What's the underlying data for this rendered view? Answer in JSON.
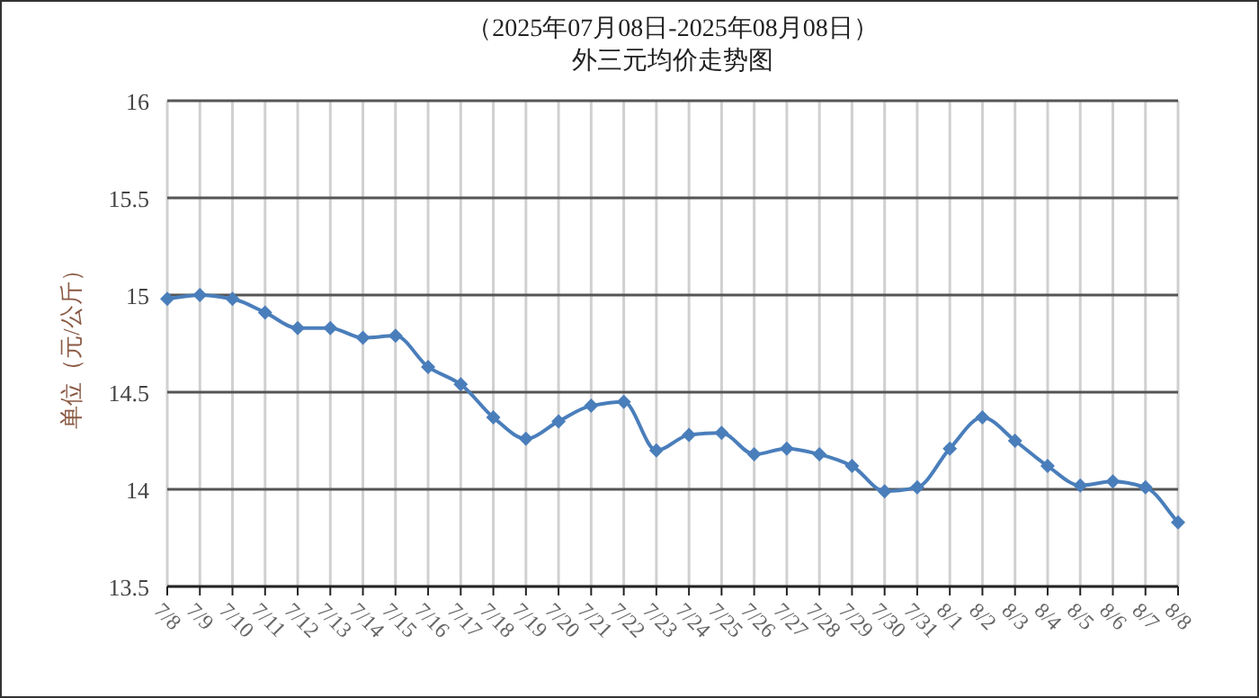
{
  "chart_data": {
    "type": "line",
    "title": "（2025年07月08日-2025年08月08日）",
    "subtitle": "外三元均价走势图",
    "ylabel": "单位（元/公斤）",
    "categories": [
      "7/8",
      "7/9",
      "7/10",
      "7/11",
      "7/12",
      "7/13",
      "7/14",
      "7/15",
      "7/16",
      "7/17",
      "7/18",
      "7/19",
      "7/20",
      "7/21",
      "7/22",
      "7/23",
      "7/24",
      "7/25",
      "7/26",
      "7/27",
      "7/28",
      "7/29",
      "7/30",
      "7/31",
      "8/1",
      "8/2",
      "8/3",
      "8/4",
      "8/5",
      "8/6",
      "8/7",
      "8/8"
    ],
    "series": [
      {
        "color": "#4a7ebb",
        "values": [
          14.98,
          15.0,
          14.98,
          14.91,
          14.83,
          14.83,
          14.78,
          14.79,
          14.63,
          14.54,
          14.37,
          14.26,
          14.35,
          14.43,
          14.45,
          14.2,
          14.28,
          14.29,
          14.18,
          14.21,
          14.18,
          14.12,
          13.99,
          14.01,
          14.21,
          14.37,
          14.25,
          14.12,
          14.02,
          14.04,
          14.01,
          13.83
        ]
      }
    ],
    "ylim": [
      13.5,
      16
    ],
    "yticks": [
      13.5,
      14,
      14.5,
      15,
      15.5,
      16
    ],
    "grid": true,
    "marker": "diamond",
    "line_style": "solid"
  }
}
